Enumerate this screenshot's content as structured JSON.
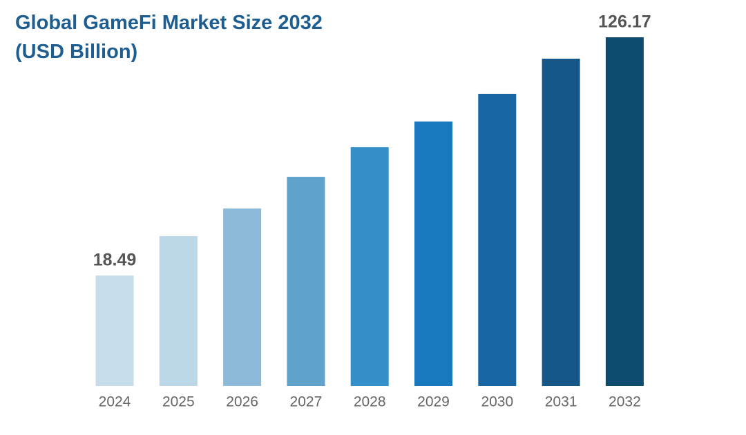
{
  "chart_data": {
    "type": "bar",
    "title": "Global GameFi Market Size 2032 (USD Billion)",
    "categories": [
      "2024",
      "2025",
      "2026",
      "2027",
      "2028",
      "2029",
      "2030",
      "2031",
      "2032"
    ],
    "values": [
      18.49,
      36.3,
      48.8,
      63.1,
      76.5,
      88.1,
      100.6,
      116.5,
      126.17
    ],
    "value_labels": [
      "18.49",
      null,
      null,
      null,
      null,
      null,
      null,
      null,
      "126.17"
    ],
    "colors": [
      "#c7dcea",
      "#bcd7e8",
      "#8dbad9",
      "#5fa2cc",
      "#348fc8",
      "#1a78be",
      "#1867a4",
      "#155789",
      "#0d4c6e"
    ],
    "ylim": [
      -31.45,
      126.17
    ]
  }
}
